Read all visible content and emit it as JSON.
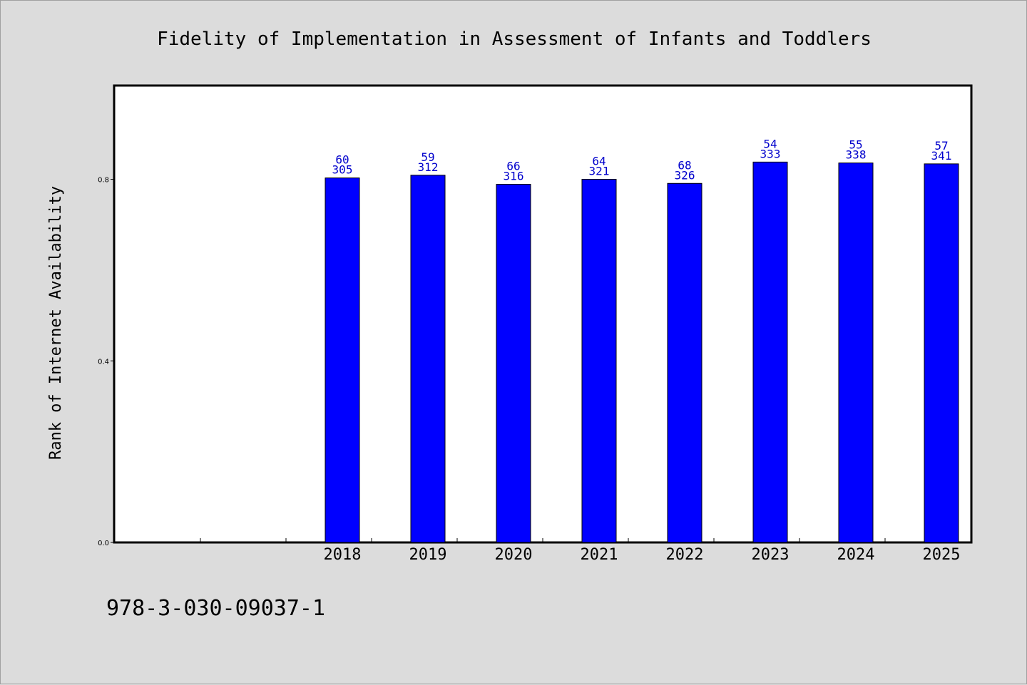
{
  "chart_data": {
    "type": "bar",
    "title": "Fidelity of Implementation in Assessment of Infants and Toddlers",
    "ylabel": "Rank of Internet Availability",
    "xlabel": "",
    "categories": [
      "",
      "",
      "2018",
      "2019",
      "2020",
      "2021",
      "2022",
      "2023",
      "2024",
      "2025"
    ],
    "values": [
      null,
      null,
      0.803,
      0.809,
      0.789,
      0.8,
      0.791,
      0.838,
      0.836,
      0.834
    ],
    "labels_top": [
      "",
      "",
      "60",
      "59",
      "66",
      "64",
      "68",
      "54",
      "55",
      "57"
    ],
    "labels_bottom": [
      "",
      "",
      "305",
      "312",
      "316",
      "321",
      "326",
      "333",
      "338",
      "341"
    ],
    "ylim": [
      0,
      1.005
    ],
    "yticks": [
      0.0,
      0.4,
      0.8
    ],
    "ytick_labels": [
      "0.0",
      "0.4",
      "0.8"
    ],
    "bar_color": "#0000ff",
    "label_color": "#0000cc",
    "grid": false,
    "legend": "none"
  },
  "footer": {
    "text": "978-3-030-09037-1"
  }
}
